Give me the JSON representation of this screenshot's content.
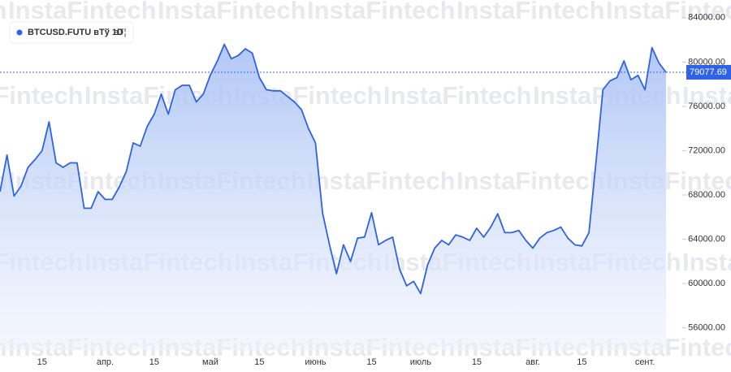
{
  "chart_data": {
    "type": "area",
    "title": "BTCUSD.FUTU вТў 1D",
    "title_suffix": "вТ¦",
    "watermark": "InstaFintech",
    "color": "#2f63e6",
    "categories": [
      null,
      null,
      null,
      null,
      null,
      null,
      "15",
      null,
      null,
      null,
      null,
      null,
      null,
      null,
      null,
      "апр.",
      null,
      null,
      null,
      null,
      null,
      null,
      "15",
      null,
      null,
      null,
      null,
      null,
      null,
      null,
      "май",
      null,
      null,
      null,
      null,
      null,
      null,
      "15",
      null,
      null,
      null,
      null,
      null,
      null,
      null,
      "июнь",
      null,
      null,
      null,
      null,
      null,
      null,
      null,
      "15",
      null,
      null,
      null,
      null,
      null,
      null,
      "июль",
      null,
      null,
      null,
      null,
      null,
      null,
      null,
      "15",
      null,
      null,
      null,
      null,
      null,
      null,
      null,
      "авг.",
      null,
      null,
      null,
      null,
      null,
      null,
      "15",
      null,
      null,
      null,
      null,
      null,
      null,
      null,
      null,
      "сент.",
      null,
      null,
      null
    ],
    "values": [
      68300,
      71600,
      67900,
      68800,
      70500,
      71200,
      72000,
      74600,
      70900,
      70500,
      70900,
      70900,
      66800,
      66800,
      68300,
      67600,
      67600,
      68700,
      70100,
      72700,
      72400,
      74200,
      75300,
      77100,
      75300,
      77500,
      77900,
      77900,
      76400,
      77100,
      78800,
      80100,
      81600,
      80300,
      80600,
      81200,
      80800,
      78600,
      77500,
      77400,
      77400,
      76900,
      76400,
      75700,
      74000,
      72700,
      66400,
      63500,
      60900,
      63500,
      62000,
      64100,
      64200,
      66400,
      63500,
      63900,
      64200,
      61300,
      59800,
      60200,
      59100,
      61700,
      63200,
      63900,
      63500,
      64400,
      64200,
      63900,
      65000,
      64200,
      65100,
      66300,
      64600,
      64600,
      64800,
      63900,
      63200,
      64100,
      64600,
      64800,
      65100,
      64100,
      63500,
      63400,
      64600,
      70900,
      77500,
      78300,
      78600,
      80100,
      78400,
      78800,
      77500,
      81300,
      79900,
      79077.69
    ],
    "last_value": 79077.69,
    "ylim": [
      54000,
      85600
    ],
    "yticks": [
      {
        "value": 56000,
        "label": "56000.00"
      },
      {
        "value": 60000,
        "label": "60000.00"
      },
      {
        "value": 64000,
        "label": "64000.00"
      },
      {
        "value": 68000,
        "label": "68000.00"
      },
      {
        "value": 72000,
        "label": "72000.00"
      },
      {
        "value": 76000,
        "label": "76000.00"
      },
      {
        "value": 80000,
        "label": "80000.00"
      },
      {
        "value": 84000,
        "label": "84000.00"
      }
    ]
  }
}
